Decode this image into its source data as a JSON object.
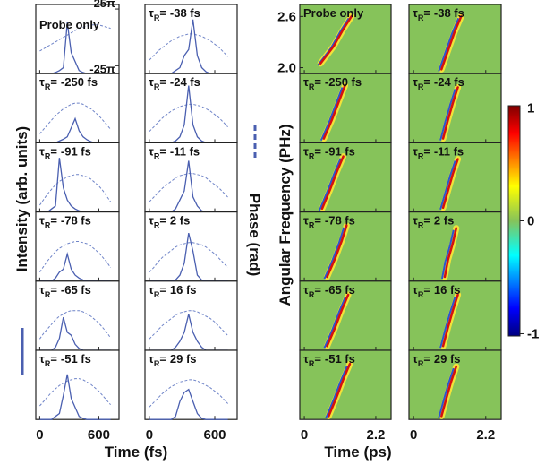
{
  "chart_data": [
    {
      "type": "line",
      "xlabel": "Time (fs)",
      "ylabel": "Intensity (arb. units)",
      "y2label": "Phase (rad)",
      "x": [
        0,
        40,
        80,
        120,
        160,
        200,
        240,
        280,
        320,
        360,
        400,
        440,
        480,
        520,
        560,
        600,
        640,
        680,
        720
      ],
      "xlim": [
        -40,
        805
      ],
      "xticks": [
        0,
        600
      ],
      "ylim": [
        0,
        1.15
      ],
      "y2lim": [
        -32,
        29
      ],
      "y2ticks": [
        {
          "value": 25,
          "label": "25π"
        },
        {
          "value": -25,
          "label": "-25π"
        }
      ],
      "intensity_color": "#4a5fb0",
      "phase_color": "#6f84c8",
      "delay_prefix": {
        "tau": "τ",
        "sub": "R",
        "eq": "="
      },
      "panels": [
        {
          "label": "Probe only",
          "intensity": [
            0,
            0,
            0,
            0,
            0.02,
            0.05,
            0.1,
            0.85,
            0.35,
            0.2,
            0.05,
            0.02,
            0,
            0,
            0,
            0,
            0,
            0,
            0
          ],
          "phase": [
            -12,
            -10,
            -8,
            -6,
            -4,
            -2,
            0,
            2,
            4,
            6,
            8,
            9,
            10,
            11,
            11,
            11,
            10,
            9,
            8
          ]
        },
        {
          "delay": "-250 fs",
          "intensity": [
            0,
            0,
            0,
            0,
            0,
            0.03,
            0.06,
            0.1,
            0.25,
            0.4,
            0.2,
            0.1,
            0.05,
            0.02,
            0,
            0,
            0,
            0,
            0
          ],
          "phase": [
            -24,
            -20,
            -16,
            -12,
            -8,
            -5,
            -2,
            0,
            2,
            3,
            3,
            2,
            0,
            -2,
            -5,
            -8,
            -12,
            -16,
            -20
          ]
        },
        {
          "delay": "-91 fs",
          "intensity": [
            0,
            0,
            0,
            0.05,
            0.1,
            0.9,
            0.4,
            0.2,
            0.1,
            0.05,
            0.02,
            0,
            0,
            0,
            0,
            0,
            0,
            0,
            0
          ],
          "phase": [
            -26,
            -21,
            -16,
            -12,
            -8,
            -5,
            -3,
            -1,
            0,
            1,
            1,
            0,
            -1,
            -3,
            -6,
            -9,
            -13,
            -18,
            -23
          ]
        },
        {
          "delay": "-78 fs",
          "intensity": [
            0,
            0,
            0,
            0,
            0.05,
            0.15,
            0.2,
            0.45,
            0.2,
            0.1,
            0.05,
            0.02,
            0,
            0,
            0,
            0,
            0,
            0,
            0
          ],
          "phase": [
            -24,
            -19,
            -14,
            -10,
            -6,
            -3,
            -1,
            1,
            2,
            3,
            3,
            2,
            1,
            -1,
            -4,
            -7,
            -11,
            -15,
            -20
          ]
        },
        {
          "delay": "-65 fs",
          "intensity": [
            0,
            0,
            0,
            0,
            0.05,
            0.2,
            0.55,
            0.3,
            0.25,
            0.1,
            0.03,
            0,
            0,
            0,
            0,
            0,
            0,
            0,
            0
          ],
          "phase": [
            -22,
            -17,
            -13,
            -9,
            -5,
            -2,
            0,
            2,
            3,
            3,
            3,
            2,
            0,
            -2,
            -5,
            -8,
            -12,
            -16,
            -21
          ]
        },
        {
          "delay": "-51 fs",
          "intensity": [
            0,
            0,
            0,
            0,
            0.05,
            0.1,
            0.4,
            0.75,
            0.35,
            0.2,
            0.05,
            0.02,
            0,
            0,
            0,
            0,
            0,
            0,
            0
          ],
          "phase": [
            -20,
            -16,
            -12,
            -8,
            -5,
            -2,
            0,
            2,
            3,
            4,
            4,
            3,
            1,
            -1,
            -4,
            -7,
            -11,
            -15,
            -19
          ]
        },
        {
          "delay": "-38 fs",
          "intensity": [
            0,
            0,
            0,
            0,
            0,
            0,
            0.05,
            0.1,
            0.3,
            0.4,
            0.9,
            0.3,
            0.1,
            0.03,
            0,
            0,
            0,
            0,
            0
          ],
          "phase": [
            -20,
            -16,
            -12,
            -9,
            -6,
            -3,
            -1,
            1,
            2,
            3,
            3,
            2,
            1,
            -1,
            -3,
            -6,
            -9,
            -13,
            -17
          ]
        },
        {
          "delay": "-24 fs",
          "intensity": [
            0,
            0,
            0,
            0,
            0,
            0,
            0.03,
            0.1,
            0.3,
            0.95,
            0.3,
            0.1,
            0.03,
            0,
            0,
            0,
            0,
            0,
            0
          ],
          "phase": [
            -22,
            -18,
            -14,
            -10,
            -7,
            -4,
            -2,
            0,
            1,
            2,
            2,
            1,
            0,
            -2,
            -4,
            -7,
            -10,
            -14,
            -18
          ]
        },
        {
          "delay": "-11 fs",
          "intensity": [
            0,
            0,
            0,
            0,
            0,
            0,
            0.05,
            0.2,
            0.35,
            0.85,
            0.25,
            0.1,
            0.02,
            0,
            0,
            0,
            0,
            0,
            0
          ],
          "phase": [
            -23,
            -19,
            -15,
            -11,
            -8,
            -5,
            -2,
            0,
            1,
            2,
            2,
            1,
            0,
            -2,
            -5,
            -8,
            -11,
            -15,
            -19
          ]
        },
        {
          "delay": "2 fs",
          "intensity": [
            0,
            0,
            0,
            0,
            0,
            0,
            0.02,
            0.1,
            0.3,
            0.8,
            0.5,
            0.1,
            0.02,
            0,
            0,
            0,
            0,
            0,
            0
          ],
          "phase": [
            -24,
            -20,
            -15,
            -11,
            -8,
            -5,
            -2,
            0,
            1,
            2,
            2,
            1,
            0,
            -2,
            -5,
            -8,
            -12,
            -16,
            -20
          ]
        },
        {
          "delay": "16 fs",
          "intensity": [
            0,
            0,
            0,
            0,
            0,
            0,
            0.05,
            0.15,
            0.3,
            0.6,
            0.3,
            0.15,
            0.05,
            0,
            0,
            0,
            0,
            0,
            0
          ],
          "phase": [
            -22,
            -18,
            -14,
            -10,
            -7,
            -4,
            -1,
            1,
            2,
            3,
            3,
            2,
            0,
            -2,
            -4,
            -7,
            -11,
            -15,
            -19
          ]
        },
        {
          "delay": "29 fs",
          "intensity": [
            0,
            0,
            0,
            0,
            0,
            0,
            0.05,
            0.3,
            0.45,
            0.5,
            0.3,
            0.1,
            0.02,
            0,
            0,
            0,
            0,
            0,
            0
          ],
          "phase": [
            -21,
            -17,
            -13,
            -9,
            -6,
            -3,
            -1,
            1,
            2,
            3,
            3,
            2,
            0,
            -2,
            -4,
            -7,
            -10,
            -14,
            -18
          ]
        }
      ]
    },
    {
      "type": "heatmap",
      "xlabel": "Time (ps)",
      "ylabel": "Angular Frequency (PHz)",
      "xlim": [
        -0.14,
        2.67
      ],
      "xticks": [
        0,
        2.2
      ],
      "ylim": [
        1.93,
        2.74
      ],
      "yticks": [
        2.6,
        {
          "value": 2.0,
          "label": "2.0"
        }
      ],
      "background_color": "#86c35a",
      "clim": [
        -1.02,
        1.02
      ],
      "cticks": [
        1,
        0,
        -1
      ],
      "delay_prefix": {
        "tau": "τ",
        "sub": "R",
        "eq": "="
      },
      "panels": [
        {
          "label": "Probe only",
          "ridge_t": [
            0.5,
            0.9,
            1.2,
            1.45
          ],
          "ridge_w": [
            2.05,
            2.25,
            2.45,
            2.6
          ]
        },
        {
          "delay": "-250 fs",
          "ridge_t": [
            0.6,
            0.85,
            1.05,
            1.25
          ],
          "ridge_w": [
            1.98,
            2.2,
            2.4,
            2.6
          ]
        },
        {
          "delay": "-91 fs",
          "ridge_t": [
            0.55,
            0.8,
            1.0,
            1.2
          ],
          "ridge_w": [
            1.97,
            2.2,
            2.4,
            2.58
          ]
        },
        {
          "delay": "-78 fs",
          "ridge_t": [
            0.7,
            0.95,
            1.15,
            1.3
          ],
          "ridge_w": [
            1.98,
            2.2,
            2.4,
            2.58
          ]
        },
        {
          "delay": "-65 fs",
          "ridge_t": [
            0.7,
            0.95,
            1.15,
            1.35
          ],
          "ridge_w": [
            1.98,
            2.2,
            2.4,
            2.58
          ]
        },
        {
          "delay": "-51 fs",
          "ridge_t": [
            0.75,
            1.0,
            1.2,
            1.4
          ],
          "ridge_w": [
            1.97,
            2.2,
            2.4,
            2.58
          ]
        },
        {
          "delay": "-38 fs",
          "ridge_t": [
            0.85,
            1.05,
            1.25,
            1.45
          ],
          "ridge_w": [
            1.98,
            2.2,
            2.42,
            2.6
          ]
        },
        {
          "delay": "-24 fs",
          "ridge_t": [
            0.9,
            1.05,
            1.2,
            1.35
          ],
          "ridge_w": [
            1.98,
            2.2,
            2.4,
            2.58
          ]
        },
        {
          "delay": "-11 fs",
          "ridge_t": [
            0.9,
            1.05,
            1.2,
            1.35
          ],
          "ridge_w": [
            1.98,
            2.18,
            2.38,
            2.55
          ]
        },
        {
          "delay": "2 fs",
          "ridge_t": [
            0.95,
            1.05,
            1.2,
            1.3
          ],
          "ridge_w": [
            1.98,
            2.18,
            2.38,
            2.55
          ]
        },
        {
          "delay": "16 fs",
          "ridge_t": [
            0.9,
            1.05,
            1.2,
            1.35
          ],
          "ridge_w": [
            1.98,
            2.2,
            2.4,
            2.58
          ]
        },
        {
          "delay": "29 fs",
          "ridge_t": [
            0.85,
            1.0,
            1.15,
            1.3
          ],
          "ridge_w": [
            1.97,
            2.18,
            2.38,
            2.55
          ]
        }
      ]
    }
  ]
}
